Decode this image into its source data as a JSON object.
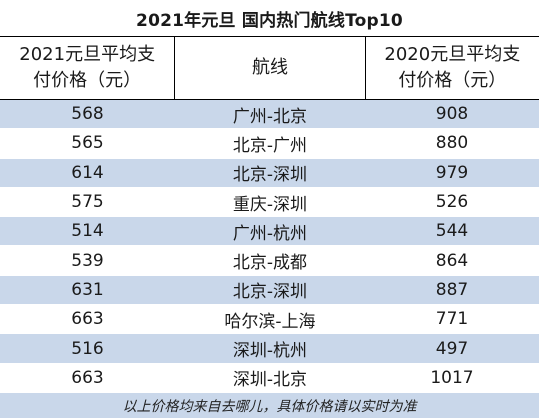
{
  "title": "2021年元旦 国内热门航线Top10",
  "headers": {
    "col1_line1": "2021元旦平均支",
    "col1_line2": "付价格（元）",
    "col2": "航线",
    "col3_line1": "2020元旦平均支",
    "col3_line2": "付价格（元）"
  },
  "rows": [
    {
      "price2021": "568",
      "route": "广州-北京",
      "price2020": "908"
    },
    {
      "price2021": "565",
      "route": "北京-广州",
      "price2020": "880"
    },
    {
      "price2021": "614",
      "route": "北京-深圳",
      "price2020": "979"
    },
    {
      "price2021": "575",
      "route": "重庆-深圳",
      "price2020": "526"
    },
    {
      "price2021": "514",
      "route": "广州-杭州",
      "price2020": "544"
    },
    {
      "price2021": "539",
      "route": "北京-成都",
      "price2020": "864"
    },
    {
      "price2021": "631",
      "route": "北京-深圳",
      "price2020": "887"
    },
    {
      "price2021": "663",
      "route": "哈尔滨-上海",
      "price2020": "771"
    },
    {
      "price2021": "516",
      "route": "深圳-杭州",
      "price2020": "497"
    },
    {
      "price2021": "663",
      "route": "深圳-北京",
      "price2020": "1017"
    }
  ],
  "footer": "以上价格均来自去哪儿，具体价格请以实时为准",
  "colors": {
    "stripe": "#c9d7ea",
    "background": "#ffffff"
  }
}
